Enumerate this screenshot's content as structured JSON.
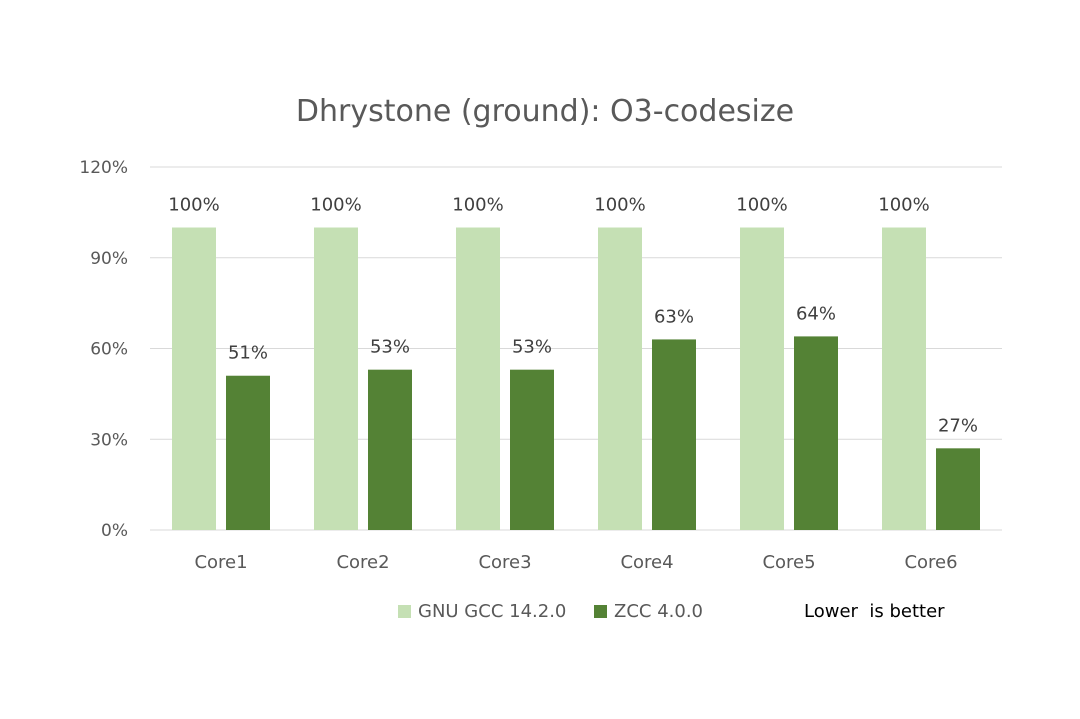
{
  "chart_data": {
    "type": "bar",
    "title": "Dhrystone (ground): O3-codesize",
    "categories": [
      "Core1",
      "Core2",
      "Core3",
      "Core4",
      "Core5",
      "Core6"
    ],
    "series": [
      {
        "name": "GNU GCC 14.2.0",
        "color": "#c5e0b4",
        "values": [
          100,
          100,
          100,
          100,
          100,
          100
        ],
        "labels": [
          "100%",
          "100%",
          "100%",
          "100%",
          "100%",
          "100%"
        ]
      },
      {
        "name": "ZCC 4.0.0",
        "color": "#548235",
        "values": [
          51,
          53,
          53,
          63,
          64,
          27
        ],
        "labels": [
          "51%",
          "53%",
          "53%",
          "63%",
          "64%",
          "27%"
        ]
      }
    ],
    "ylim": [
      0,
      120
    ],
    "yticks": [
      0,
      30,
      60,
      90,
      120
    ],
    "ytick_labels": [
      "0%",
      "30%",
      "60%",
      "90%",
      "120%"
    ],
    "grid": true,
    "legend_position": "bottom",
    "note": "Lower  is better"
  }
}
